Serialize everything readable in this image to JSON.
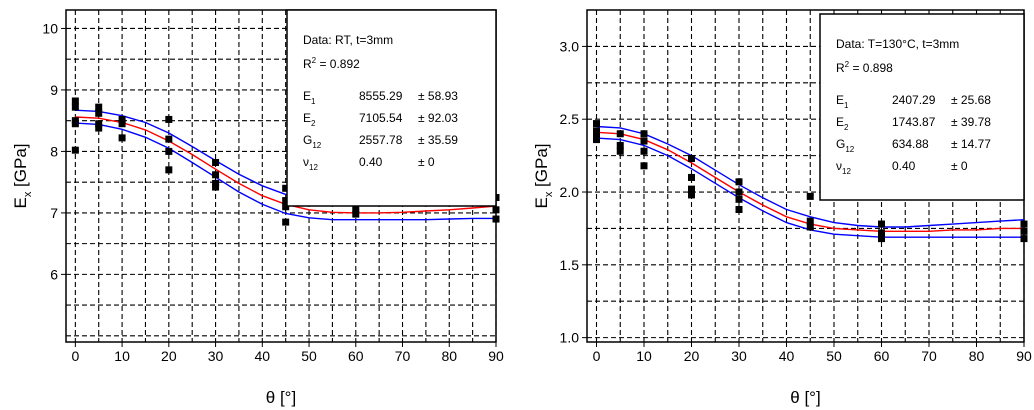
{
  "chart_data": [
    {
      "type": "scatter",
      "xlabel": "θ [°]",
      "ylabel": "E",
      "ylabel_sub": "x",
      "ylabel_unit": " [GPa]",
      "xlim": [
        -2,
        90
      ],
      "ylim": [
        4.9,
        10.3
      ],
      "xticks": [
        "0",
        "10",
        "20",
        "30",
        "40",
        "50",
        "60",
        "70",
        "80",
        "90"
      ],
      "yticks": [
        "6",
        "7",
        "8",
        "9",
        "10"
      ],
      "ytick_values": [
        6,
        7,
        8,
        9,
        10
      ],
      "xtick_values": [
        0,
        10,
        20,
        30,
        40,
        50,
        60,
        70,
        80,
        90
      ],
      "grid": true,
      "legend": {
        "line1": "Data: RT, t=3mm",
        "r2_label": "R",
        "r2_sup": "2",
        "r2_value": " =  0.892",
        "params": [
          {
            "name": "E",
            "sub": "1",
            "value": "8555.29",
            "err": "± 58.93"
          },
          {
            "name": "E",
            "sub": "2",
            "value": "7105.54",
            "err": "± 92.03"
          },
          {
            "name": "G",
            "sub": "12",
            "value": "2557.78",
            "err": "± 35.59"
          },
          {
            "name": "ν",
            "sub": "12",
            "value": "0.40",
            "err": "± 0"
          }
        ]
      },
      "points": [
        [
          0,
          8.82
        ],
        [
          0,
          8.72
        ],
        [
          0,
          8.5
        ],
        [
          0,
          8.45
        ],
        [
          0,
          8.02
        ],
        [
          5,
          8.72
        ],
        [
          5,
          8.62
        ],
        [
          5,
          8.45
        ],
        [
          5,
          8.38
        ],
        [
          10,
          8.52
        ],
        [
          10,
          8.45
        ],
        [
          10,
          8.22
        ],
        [
          20,
          8.52
        ],
        [
          20,
          8.2
        ],
        [
          20,
          8.0
        ],
        [
          20,
          7.7
        ],
        [
          30,
          7.82
        ],
        [
          30,
          7.62
        ],
        [
          30,
          7.48
        ],
        [
          30,
          7.42
        ],
        [
          45,
          7.4
        ],
        [
          45,
          7.2
        ],
        [
          45,
          7.1
        ],
        [
          45,
          6.85
        ],
        [
          60,
          7.25
        ],
        [
          60,
          7.05
        ],
        [
          60,
          6.98
        ],
        [
          90,
          7.25
        ],
        [
          90,
          7.05
        ],
        [
          90,
          6.9
        ]
      ],
      "series": [
        {
          "name": "",
          "color": "#ff0000",
          "x": [
            0,
            5,
            10,
            15,
            20,
            25,
            30,
            35,
            40,
            45,
            50,
            55,
            60,
            65,
            70,
            75,
            80,
            85,
            90
          ],
          "values": [
            8.56,
            8.54,
            8.47,
            8.35,
            8.17,
            7.95,
            7.71,
            7.48,
            7.28,
            7.14,
            7.05,
            7.01,
            7.0,
            7.0,
            7.01,
            7.03,
            7.05,
            7.08,
            7.11
          ]
        },
        {
          "name": "",
          "color": "#0000ff",
          "x": [
            0,
            5,
            10,
            15,
            20,
            25,
            30,
            35,
            40,
            45,
            50,
            55,
            60,
            65,
            70,
            75,
            80,
            85,
            90
          ],
          "values": [
            8.67,
            8.65,
            8.58,
            8.47,
            8.3,
            8.08,
            7.85,
            7.63,
            7.44,
            7.3,
            7.2,
            7.14,
            7.12,
            7.13,
            7.16,
            7.2,
            7.25,
            7.3,
            7.3
          ]
        },
        {
          "name": "",
          "color": "#0000ff",
          "x": [
            0,
            5,
            10,
            15,
            20,
            25,
            30,
            35,
            40,
            45,
            50,
            55,
            60,
            65,
            70,
            75,
            80,
            85,
            90
          ],
          "values": [
            8.46,
            8.44,
            8.36,
            8.23,
            8.05,
            7.82,
            7.58,
            7.34,
            7.14,
            6.99,
            6.92,
            6.89,
            6.89,
            6.89,
            6.89,
            6.89,
            6.9,
            6.91,
            6.91
          ]
        }
      ]
    },
    {
      "type": "scatter",
      "xlabel": "θ [°]",
      "ylabel": "E",
      "ylabel_sub": "x",
      "ylabel_unit": " [GPa]",
      "xlim": [
        -2,
        90
      ],
      "ylim": [
        0.97,
        3.25
      ],
      "xticks": [
        "0",
        "10",
        "20",
        "30",
        "40",
        "50",
        "60",
        "70",
        "80",
        "90"
      ],
      "yticks": [
        "1.0",
        "1.5",
        "2.0",
        "2.5",
        "3.0"
      ],
      "ytick_values": [
        1.0,
        1.5,
        2.0,
        2.5,
        3.0
      ],
      "xtick_values": [
        0,
        10,
        20,
        30,
        40,
        50,
        60,
        70,
        80,
        90
      ],
      "grid": true,
      "legend": {
        "line1": "Data: T=130°C, t=3mm",
        "r2_label": "R",
        "r2_sup": "2",
        "r2_value": " =  0.898",
        "params": [
          {
            "name": "E",
            "sub": "1",
            "value": "2407.29",
            "err": "± 25.68"
          },
          {
            "name": "E",
            "sub": "2",
            "value": "1743.87",
            "err": "± 39.78"
          },
          {
            "name": "G",
            "sub": "12",
            "value": "634.88",
            "err": "± 14.77"
          },
          {
            "name": "ν",
            "sub": "12",
            "value": "0.40",
            "err": "± 0"
          }
        ]
      },
      "points": [
        [
          0,
          2.47
        ],
        [
          0,
          2.42
        ],
        [
          0,
          2.38
        ],
        [
          0,
          2.36
        ],
        [
          5,
          2.4
        ],
        [
          5,
          2.32
        ],
        [
          5,
          2.28
        ],
        [
          10,
          2.4
        ],
        [
          10,
          2.35
        ],
        [
          10,
          2.28
        ],
        [
          10,
          2.18
        ],
        [
          20,
          2.23
        ],
        [
          20,
          2.1
        ],
        [
          20,
          2.02
        ],
        [
          20,
          1.98
        ],
        [
          30,
          2.07
        ],
        [
          30,
          2.0
        ],
        [
          30,
          1.95
        ],
        [
          30,
          1.88
        ],
        [
          45,
          1.97
        ],
        [
          45,
          1.8
        ],
        [
          45,
          1.76
        ],
        [
          60,
          1.78
        ],
        [
          60,
          1.72
        ],
        [
          60,
          1.68
        ],
        [
          90,
          1.78
        ],
        [
          90,
          1.73
        ],
        [
          90,
          1.68
        ]
      ],
      "series": [
        {
          "name": "",
          "color": "#ff0000",
          "x": [
            0,
            5,
            10,
            15,
            20,
            25,
            30,
            35,
            40,
            45,
            50,
            55,
            60,
            65,
            70,
            75,
            80,
            85,
            90
          ],
          "values": [
            2.41,
            2.4,
            2.36,
            2.29,
            2.2,
            2.1,
            2.0,
            1.91,
            1.83,
            1.78,
            1.75,
            1.74,
            1.73,
            1.73,
            1.73,
            1.74,
            1.74,
            1.75,
            1.75
          ]
        },
        {
          "name": "",
          "color": "#0000ff",
          "x": [
            0,
            5,
            10,
            15,
            20,
            25,
            30,
            35,
            40,
            45,
            50,
            55,
            60,
            65,
            70,
            75,
            80,
            85,
            90
          ],
          "values": [
            2.45,
            2.44,
            2.4,
            2.33,
            2.25,
            2.15,
            2.05,
            1.96,
            1.88,
            1.83,
            1.79,
            1.77,
            1.76,
            1.76,
            1.77,
            1.78,
            1.79,
            1.8,
            1.81
          ]
        },
        {
          "name": "",
          "color": "#0000ff",
          "x": [
            0,
            5,
            10,
            15,
            20,
            25,
            30,
            35,
            40,
            45,
            50,
            55,
            60,
            65,
            70,
            75,
            80,
            85,
            90
          ],
          "values": [
            2.37,
            2.36,
            2.32,
            2.25,
            2.16,
            2.06,
            1.96,
            1.87,
            1.79,
            1.74,
            1.71,
            1.7,
            1.69,
            1.69,
            1.69,
            1.69,
            1.69,
            1.69,
            1.69
          ]
        }
      ]
    }
  ]
}
